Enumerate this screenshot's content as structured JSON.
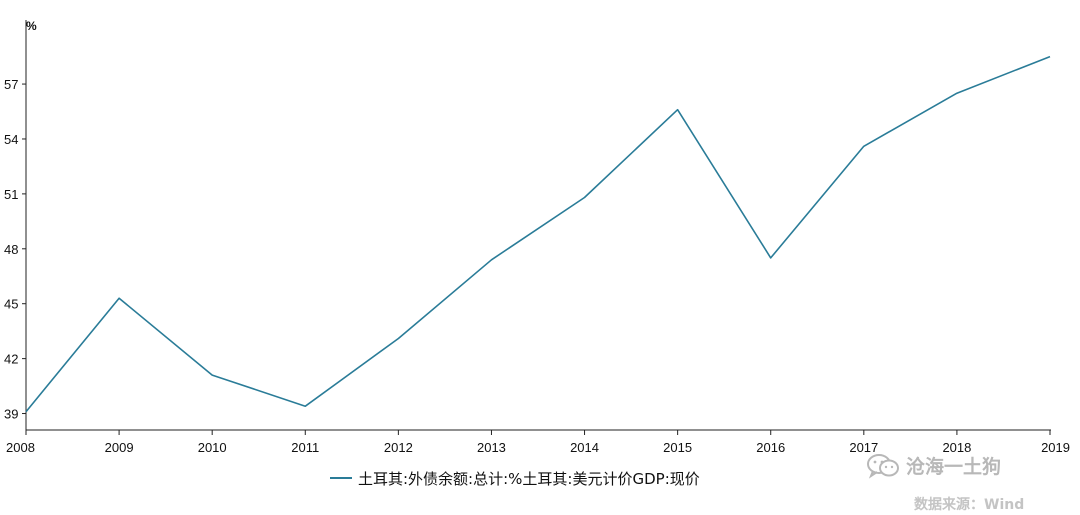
{
  "chart_data": {
    "type": "line",
    "unit_label": "%",
    "x": [
      "2008",
      "2009",
      "2010",
      "2011",
      "2012",
      "2013",
      "2014",
      "2015",
      "2016",
      "2017",
      "2018",
      "2019"
    ],
    "series": [
      {
        "name": "土耳其:外债余额:总计:%土耳其:美元计价GDP:现价",
        "values": [
          39.1,
          45.3,
          41.1,
          39.4,
          43.1,
          47.4,
          50.8,
          55.6,
          47.5,
          53.6,
          56.5,
          58.5
        ],
        "color": "#2a7c98"
      }
    ],
    "yticks": [
      39,
      42,
      45,
      48,
      51,
      54,
      57
    ],
    "ylim": [
      38.1,
      60.5
    ],
    "grid": false,
    "legend_position": "bottom-center"
  },
  "watermark": {
    "text": "沧海一土狗",
    "icon": "wechat-icon"
  },
  "source": "数据来源：Wind"
}
